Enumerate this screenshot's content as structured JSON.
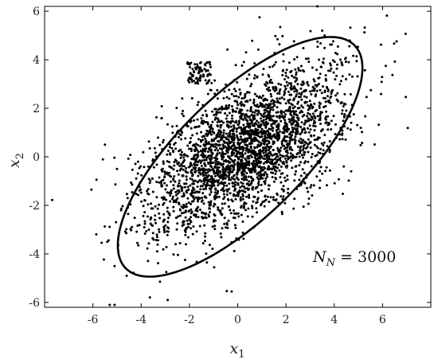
{
  "chart_data": {
    "type": "scatter",
    "title": "",
    "xlabel": "x",
    "xlabel_sub": "1",
    "ylabel": "x",
    "ylabel_sub": "2",
    "xlim": [
      -8,
      8
    ],
    "ylim": [
      -6.2,
      6.2
    ],
    "xticks": [
      -6,
      -4,
      -2,
      0,
      2,
      4,
      6
    ],
    "yticks": [
      -6,
      -4,
      -2,
      0,
      2,
      4,
      6
    ],
    "grid": false,
    "legend": "none",
    "point_color": "#000000",
    "annotation": {
      "var": "N",
      "sub": "N",
      "rest": " = 3000"
    },
    "ellipse": {
      "center": [
        0.1,
        0.0
      ],
      "semi_major": 6.6,
      "semi_minor": 2.55,
      "angle_deg": 44,
      "color": "#000000"
    },
    "n_points": 3000,
    "cluster": {
      "center": [
        0.3,
        0.3
      ],
      "std_dev": [
        2.0,
        1.7
      ],
      "correlation": 0.6
    },
    "outlier_block": {
      "x_range": [
        -2.1,
        -1.1
      ],
      "y_range": [
        3.0,
        3.9
      ],
      "count": 80
    },
    "outliers": [
      [
        -5.5,
        0.5
      ],
      [
        -5.0,
        -0.5
      ],
      [
        -5.3,
        -6.1
      ],
      [
        -5.1,
        -6.1
      ],
      [
        -2.9,
        -5.9
      ],
      [
        4.7,
        -0.6
      ],
      [
        4.7,
        1.4
      ],
      [
        3.3,
        6.2
      ],
      [
        3.6,
        5.0
      ],
      [
        3.5,
        5.2
      ],
      [
        -5.4,
        -3.5
      ],
      [
        -5.1,
        -4.5
      ],
      [
        4.6,
        3.9
      ],
      [
        4.3,
        3.9
      ],
      [
        -4.6,
        -4.9
      ],
      [
        -3.7,
        -0.4
      ],
      [
        3.5,
        -0.7
      ],
      [
        -2.3,
        2.4
      ]
    ]
  }
}
